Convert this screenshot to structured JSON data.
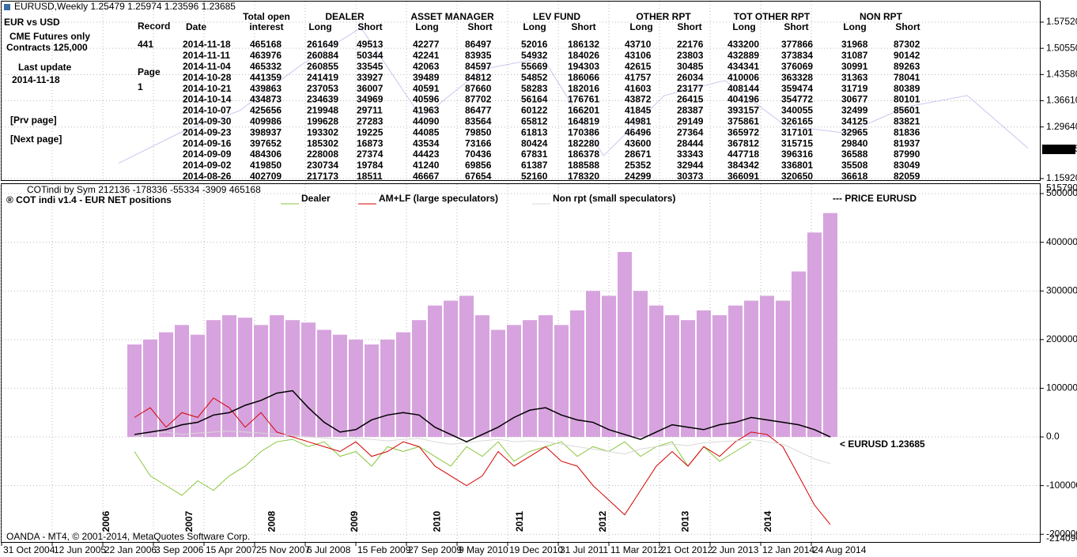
{
  "top_window": {
    "title": "EURUSD,Weekly  1.25479 1.25974 1.23596 1.23685",
    "left_panel": {
      "heading": "EUR vs USD",
      "line1": "CME Futures only",
      "line2": "Contracts 125,000",
      "update_label": "Last update",
      "update_date": "2014-11-18",
      "record_label": "Record",
      "record": "441",
      "page_label": "Page",
      "page": "1",
      "prev": "[Prv page]",
      "next": "[Next page]"
    },
    "table": {
      "header_top": [
        "Total open",
        "DEALER",
        "ASSET MANAGER",
        "LEV FUND",
        "OTHER RPT",
        "TOT OTHER RPT",
        "NON RPT"
      ],
      "header_sub": [
        "Date",
        "interest",
        "Long",
        "Short",
        "Long",
        "Short",
        "Long",
        "Short",
        "Long",
        "Short",
        "Long",
        "Short",
        "Long",
        "Short"
      ],
      "rows": [
        [
          "2014-11-18",
          "465168",
          "261649",
          "49513",
          "42277",
          "86497",
          "52016",
          "186132",
          "43710",
          "22176",
          "433200",
          "377866",
          "31968",
          "87302"
        ],
        [
          "2014-11-11",
          "463976",
          "260884",
          "50344",
          "42241",
          "83935",
          "54932",
          "184026",
          "43106",
          "23803",
          "432889",
          "373834",
          "31087",
          "90142"
        ],
        [
          "2014-11-04",
          "465332",
          "260855",
          "33545",
          "42063",
          "84597",
          "55669",
          "194303",
          "42615",
          "30485",
          "434341",
          "376069",
          "30991",
          "89263"
        ],
        [
          "2014-10-28",
          "441359",
          "241419",
          "33927",
          "39489",
          "84812",
          "54852",
          "186066",
          "41757",
          "26034",
          "410006",
          "363328",
          "31363",
          "78041"
        ],
        [
          "2014-10-21",
          "439863",
          "237053",
          "36007",
          "40591",
          "87660",
          "58283",
          "182016",
          "41603",
          "23177",
          "408144",
          "359474",
          "31719",
          "80389"
        ],
        [
          "2014-10-14",
          "434873",
          "234639",
          "34969",
          "40596",
          "87702",
          "56164",
          "176761",
          "43872",
          "26415",
          "404196",
          "354772",
          "30677",
          "80101"
        ],
        [
          "2014-10-07",
          "425656",
          "219948",
          "29711",
          "41963",
          "86477",
          "60122",
          "166201",
          "41845",
          "28387",
          "393157",
          "340055",
          "32499",
          "85601"
        ],
        [
          "2014-09-30",
          "409986",
          "199628",
          "27283",
          "44090",
          "83564",
          "65812",
          "164819",
          "44981",
          "29149",
          "375861",
          "326165",
          "34125",
          "83821"
        ],
        [
          "2014-09-23",
          "398937",
          "193302",
          "19225",
          "44085",
          "79850",
          "61813",
          "170386",
          "46496",
          "27364",
          "365972",
          "317101",
          "32965",
          "81836"
        ],
        [
          "2014-09-16",
          "397652",
          "185302",
          "16873",
          "43534",
          "73166",
          "80424",
          "182280",
          "43600",
          "28444",
          "367812",
          "315715",
          "29840",
          "81937"
        ],
        [
          "2014-09-09",
          "484306",
          "228008",
          "27374",
          "44423",
          "70436",
          "67831",
          "186378",
          "28671",
          "33343",
          "447718",
          "396316",
          "36588",
          "87990"
        ],
        [
          "2014-09-02",
          "419850",
          "230734",
          "19784",
          "41240",
          "69856",
          "61387",
          "188588",
          "25352",
          "32944",
          "384342",
          "336801",
          "35508",
          "83049"
        ],
        [
          "2014-08-26",
          "402709",
          "217173",
          "18511",
          "46667",
          "67654",
          "52160",
          "178320",
          "24299",
          "30373",
          "366091",
          "320650",
          "36618",
          "82059"
        ]
      ]
    },
    "price_chart": {
      "color": "#c8c8f0",
      "values": [
        1.2,
        1.28,
        1.34,
        1.46,
        1.56,
        1.32,
        1.45,
        1.48,
        1.22,
        1.38,
        1.42,
        1.3,
        1.28,
        1.35,
        1.38,
        1.24
      ],
      "ylim": [
        1.155,
        1.6298
      ],
      "yticks": [
        {
          "value": 1.5752,
          "label": "1.57520"
        },
        {
          "value": 1.5055,
          "label": "1.50550"
        },
        {
          "value": 1.4358,
          "label": "1.43580"
        },
        {
          "value": 1.3661,
          "label": "1.36610"
        },
        {
          "value": 1.2964,
          "label": "1.29640"
        },
        {
          "value": 1.1592,
          "label": "1.15920"
        }
      ],
      "current": 1.23685
    }
  },
  "chart_data": {
    "type": "line",
    "header": "COTindi by Sym 212136 -178336 -55334 -3909 465168",
    "title": "® COT indi v1.4 - EUR  NET positions",
    "price_legend": "--- PRICE EURUSD",
    "price_note": "< EURUSD  1.23685",
    "footer": "OANDA - MT4, © 2001-2014, MetaQuotes Software Corp.",
    "x_labels": [
      "31 Oct 2004",
      "12 Jun 2005",
      "22 Jan 2006",
      "3 Sep 2006",
      "15 Apr 2007",
      "25 Nov 2007",
      "6 Jul 2008",
      "15 Feb 2009",
      "27 Sep 2009",
      "9 May 2010",
      "19 Dec 2010",
      "31 Jul 2011",
      "11 Mar 2012",
      "21 Oct 2012",
      "2 Jun 2013",
      "12 Jan 2014",
      "24 Aug 2014"
    ],
    "year_labels": [
      "2006",
      "2007",
      "2008",
      "2009",
      "2010",
      "2011",
      "2012",
      "2013",
      "2014"
    ],
    "ylim": [
      -214096,
      515790
    ],
    "yticks": [
      500000,
      400000,
      300000,
      200000,
      100000,
      {
        "value": 0,
        "label": "0.0"
      },
      -100000,
      -200000
    ],
    "grid": true,
    "series": [
      {
        "type": "bar",
        "color": "#d7a3de",
        "values": [
          190000,
          200000,
          215000,
          230000,
          210000,
          240000,
          250000,
          245000,
          230000,
          250000,
          240000,
          235000,
          220000,
          210000,
          200000,
          190000,
          200000,
          215000,
          240000,
          270000,
          280000,
          290000,
          250000,
          220000,
          230000,
          240000,
          250000,
          230000,
          260000,
          300000,
          290000,
          380000,
          300000,
          270000,
          250000,
          240000,
          260000,
          250000,
          270000,
          280000,
          290000,
          280000,
          340000,
          420000,
          460000
        ]
      },
      {
        "name": "Dealer",
        "type": "line",
        "color": "#8cc63f",
        "values": [
          -30000,
          -80000,
          -100000,
          -120000,
          -90000,
          -110000,
          -80000,
          -60000,
          -30000,
          -10000,
          -5000,
          -20000,
          -10000,
          -40000,
          -30000,
          -60000,
          -20000,
          -30000,
          -20000,
          -40000,
          -60000,
          -20000,
          -40000,
          -10000,
          -50000,
          -30000,
          -20000,
          -10000,
          -40000,
          -20000,
          -30000,
          -10000,
          -40000,
          -20000,
          -10000,
          -60000,
          -20000,
          -50000,
          -30000,
          -10000,
          null,
          null,
          null,
          null,
          null
        ]
      },
      {
        "name": "AM+LF (large speculators)",
        "type": "line",
        "color": "#d40000",
        "values": [
          40000,
          60000,
          20000,
          50000,
          40000,
          80000,
          60000,
          20000,
          50000,
          10000,
          0,
          -10000,
          -20000,
          -30000,
          -10000,
          -40000,
          -30000,
          -10000,
          -20000,
          -60000,
          -80000,
          -100000,
          -80000,
          -30000,
          -60000,
          -40000,
          -20000,
          -50000,
          -60000,
          -100000,
          -130000,
          -160000,
          -110000,
          -60000,
          -30000,
          -60000,
          -20000,
          -40000,
          -10000,
          10000,
          5000,
          -20000,
          -80000,
          -140000,
          -180000
        ]
      },
      {
        "name": "Non rpt (small speculators)",
        "type": "line",
        "color": "#d8d8d8",
        "values": [
          0,
          5000,
          10000,
          5000,
          8000,
          10000,
          12000,
          10000,
          8000,
          5000,
          3000,
          0,
          -2000,
          -5000,
          -3000,
          -5000,
          -8000,
          -5000,
          -3000,
          -10000,
          -15000,
          -12000,
          -8000,
          -5000,
          -10000,
          -8000,
          -10000,
          -15000,
          -20000,
          -25000,
          -30000,
          -35000,
          -25000,
          -20000,
          -15000,
          -18000,
          -12000,
          -10000,
          -8000,
          -5000,
          -10000,
          -15000,
          -30000,
          -45000,
          -55000
        ]
      },
      {
        "type": "line",
        "color": "#000000",
        "values": [
          5000,
          10000,
          15000,
          25000,
          30000,
          45000,
          50000,
          65000,
          75000,
          90000,
          95000,
          60000,
          30000,
          10000,
          15000,
          35000,
          45000,
          50000,
          45000,
          20000,
          5000,
          -10000,
          5000,
          20000,
          40000,
          55000,
          60000,
          45000,
          35000,
          30000,
          15000,
          5000,
          -5000,
          10000,
          25000,
          20000,
          15000,
          25000,
          30000,
          40000,
          35000,
          30000,
          25000,
          15000,
          0
        ]
      }
    ]
  }
}
